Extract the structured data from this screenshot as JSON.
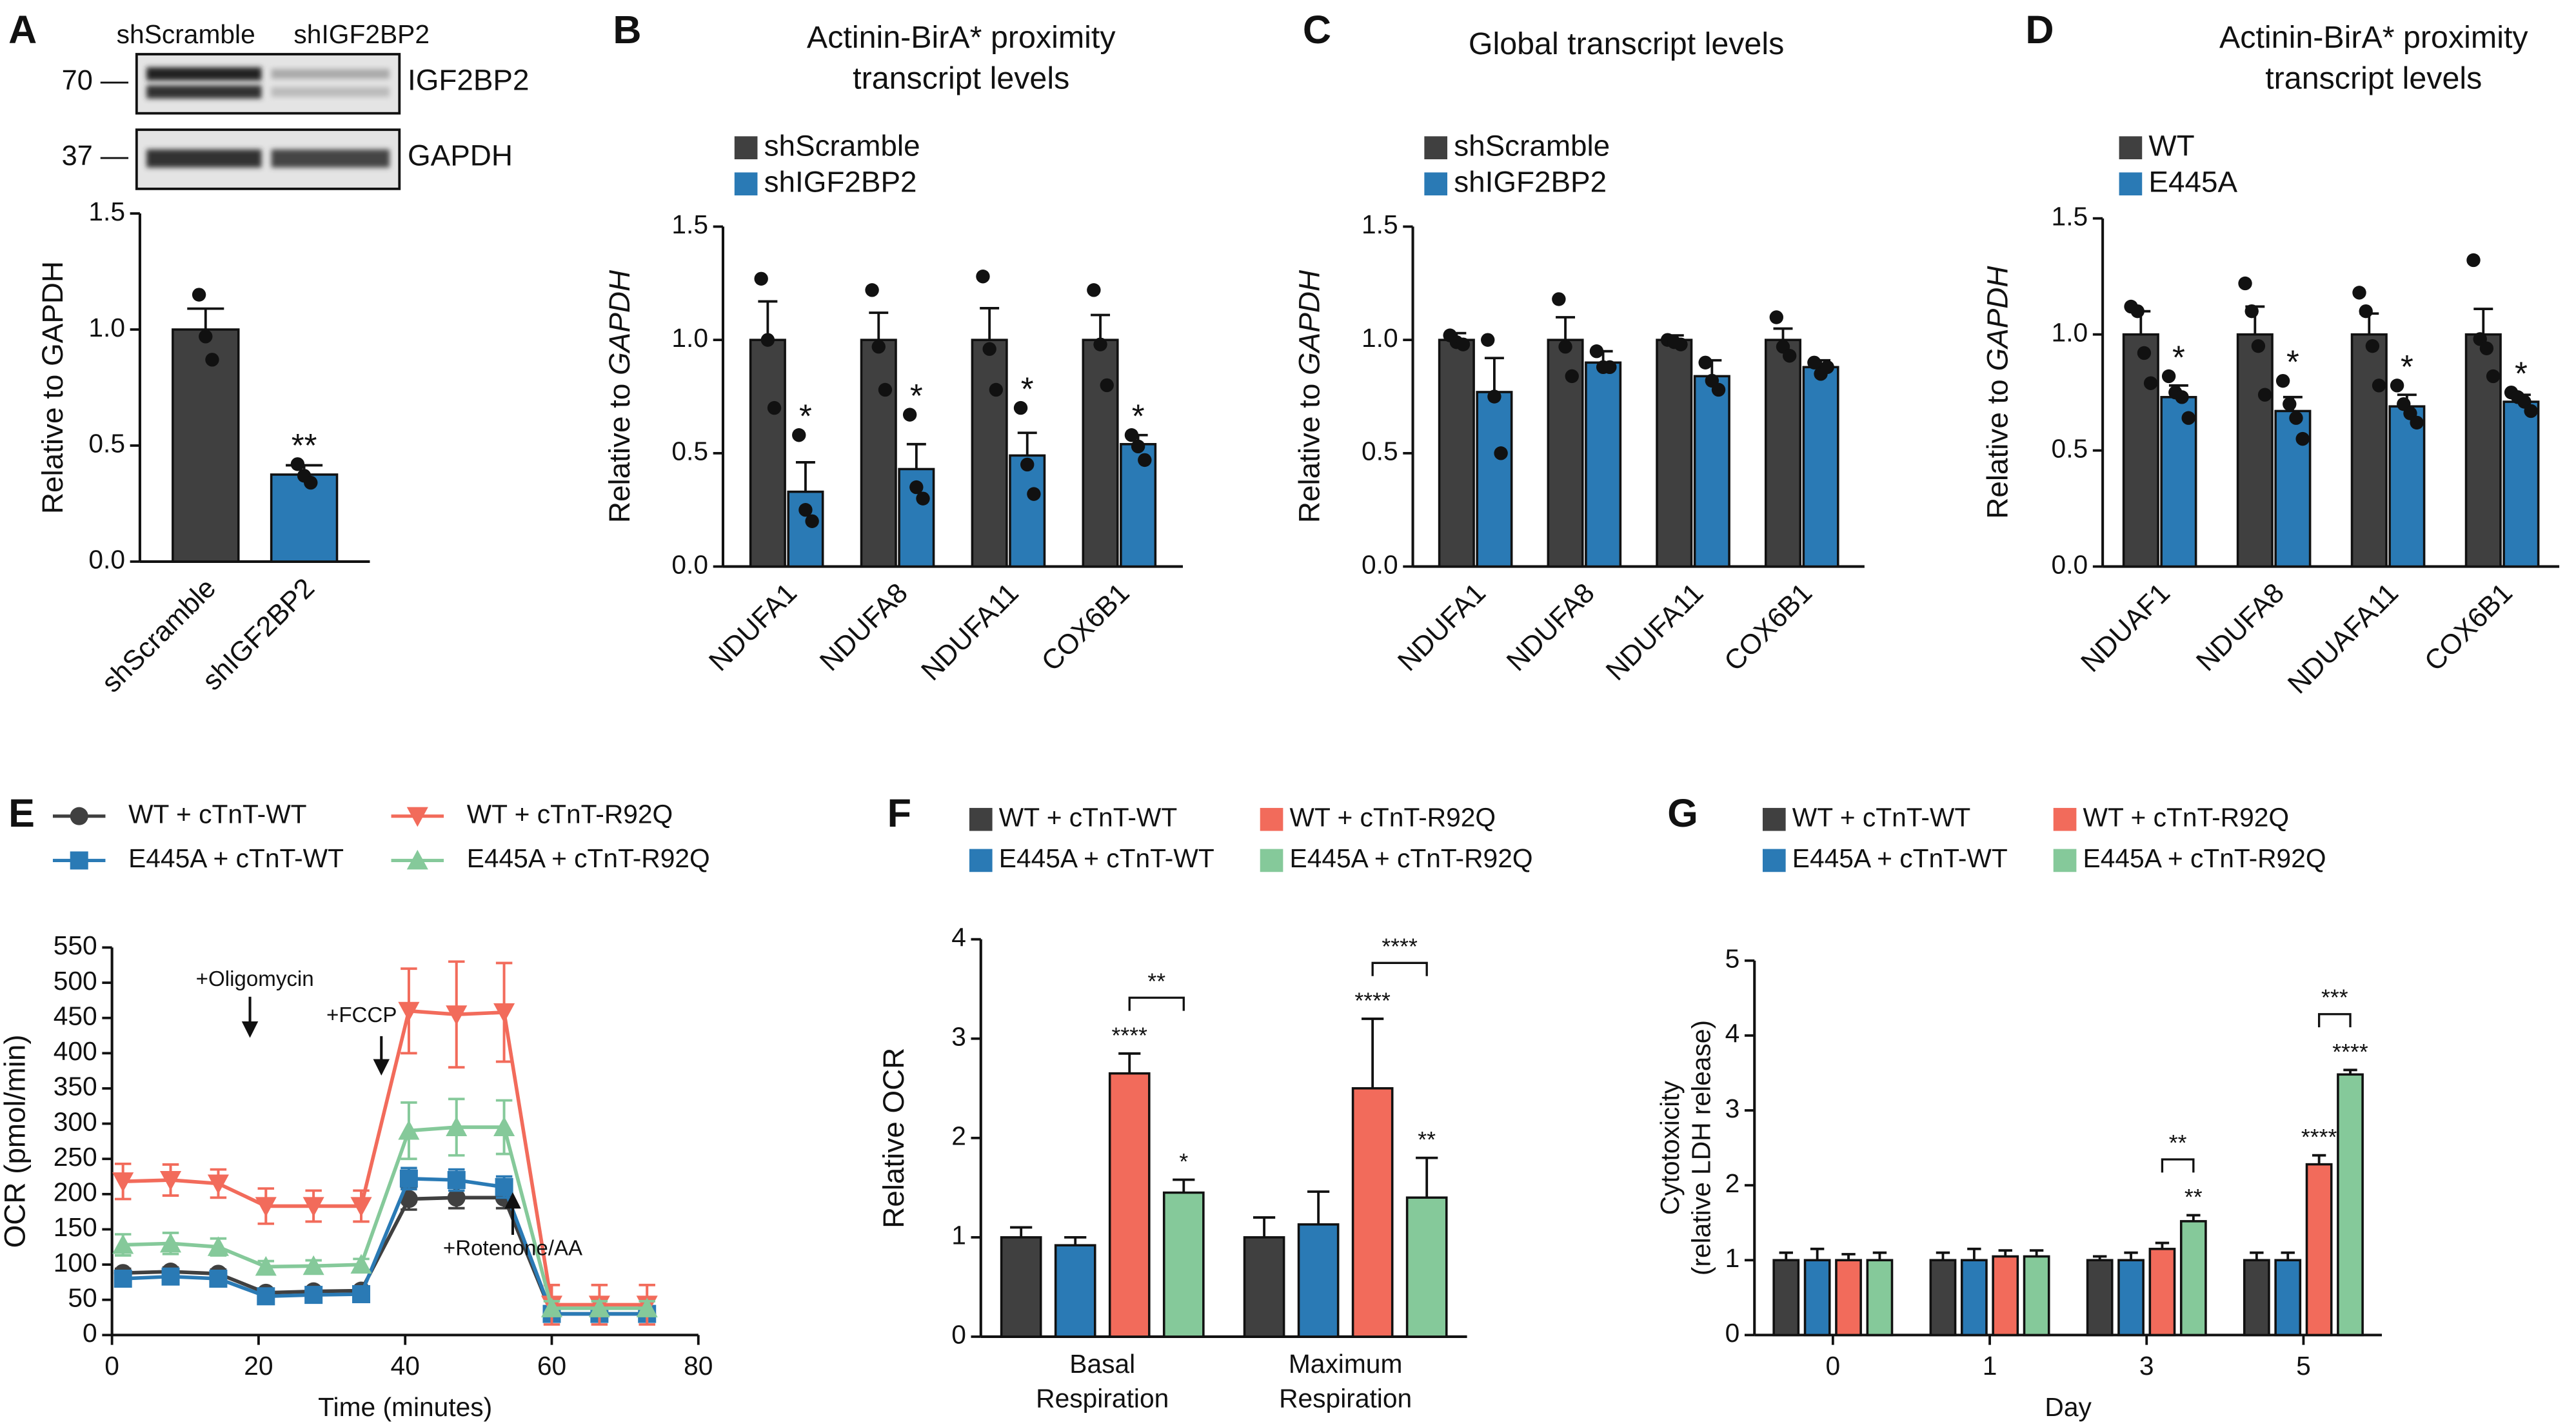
{
  "chart_data": [
    {
      "panel": "A",
      "type": "bar",
      "blot": {
        "lanes": [
          "shScramble",
          "shIGF2BP2"
        ],
        "rows": [
          {
            "marker": "70 —",
            "protein": "IGF2BP2"
          },
          {
            "marker": "37 —",
            "protein": "GAPDH"
          }
        ]
      },
      "categories": [
        "shScramble",
        "shIGF2BP2"
      ],
      "values": [
        1.0,
        0.375
      ],
      "errors": [
        0.09,
        0.04
      ],
      "points": [
        [
          1.15,
          0.97,
          0.87
        ],
        [
          0.42,
          0.37,
          0.34
        ]
      ],
      "colors": [
        "#404040",
        "#2a7ab5"
      ],
      "significance": [
        null,
        "**"
      ],
      "y_label": "Relative to GAPDH",
      "ylim": [
        0,
        1.5
      ],
      "yticks": [
        {
          "value": 0,
          "label": "0.0"
        },
        0.5,
        {
          "value": 1,
          "label": "1.0"
        },
        1.5
      ]
    },
    {
      "panel": "B",
      "type": "bar",
      "title": "Actinin-BirA* proximity transcript levels",
      "categories": [
        "NDUFA1",
        "NDUFA8",
        "NDUFA11",
        "COX6B1"
      ],
      "series": [
        {
          "name": "shScramble",
          "color": "#404040",
          "values": [
            1,
            1,
            1,
            1
          ],
          "errors": [
            0.17,
            0.12,
            0.14,
            0.11
          ],
          "points": [
            [
              1.27,
              1.0,
              0.7
            ],
            [
              1.22,
              0.97,
              0.78
            ],
            [
              1.28,
              0.96,
              0.78
            ],
            [
              1.22,
              0.98,
              0.8
            ]
          ],
          "significance": [
            null,
            null,
            null,
            null
          ]
        },
        {
          "name": "shIGF2BP2",
          "color": "#2a7ab5",
          "values": [
            0.33,
            0.43,
            0.49,
            0.54
          ],
          "errors": [
            0.13,
            0.11,
            0.1,
            0.04
          ],
          "points": [
            [
              0.58,
              0.25,
              0.2
            ],
            [
              0.67,
              0.35,
              0.3
            ],
            [
              0.7,
              0.45,
              0.32
            ],
            [
              0.58,
              0.53,
              0.47
            ]
          ],
          "significance": [
            "*",
            "*",
            "*",
            "*"
          ]
        }
      ],
      "y_label": "Relative to",
      "y_label_gene": "GAPDH",
      "ylim": [
        0,
        1.5
      ],
      "yticks": [
        {
          "value": 0,
          "label": "0.0"
        },
        0.5,
        {
          "value": 1,
          "label": "1.0"
        },
        1.5
      ]
    },
    {
      "panel": "C",
      "type": "bar",
      "title": "Global transcript levels",
      "categories": [
        "NDUFA1",
        "NDUFA8",
        "NDUFA11",
        "COX6B1"
      ],
      "series": [
        {
          "name": "shScramble",
          "color": "#404040",
          "values": [
            1,
            1,
            1,
            1
          ],
          "errors": [
            0.03,
            0.1,
            0.02,
            0.05
          ],
          "points": [
            [
              1.02,
              0.99,
              0.98
            ],
            [
              1.18,
              0.97,
              0.84
            ],
            [
              1.0,
              0.99,
              0.98
            ],
            [
              1.1,
              0.97,
              0.93
            ]
          ],
          "significance": [
            null,
            null,
            null,
            null
          ]
        },
        {
          "name": "shIGF2BP2",
          "color": "#2a7ab5",
          "values": [
            0.77,
            0.9,
            0.84,
            0.88
          ],
          "errors": [
            0.15,
            0.05,
            0.07,
            0.03
          ],
          "points": [
            [
              1.0,
              0.75,
              0.5
            ],
            [
              0.95,
              0.88,
              0.88
            ],
            [
              0.9,
              0.82,
              0.78
            ],
            [
              0.9,
              0.85,
              0.88
            ]
          ],
          "significance": [
            null,
            null,
            null,
            null
          ]
        }
      ],
      "y_label": "Relative to",
      "y_label_gene": "GAPDH",
      "ylim": [
        0,
        1.5
      ],
      "yticks": [
        {
          "value": 0,
          "label": "0.0"
        },
        0.5,
        {
          "value": 1,
          "label": "1.0"
        },
        1.5
      ]
    },
    {
      "panel": "D",
      "type": "bar",
      "title": "Actinin-BirA* proximity transcript levels",
      "categories": [
        "NDUAF1",
        "NDUFA8",
        "NDUAFA11",
        "COX6B1"
      ],
      "series": [
        {
          "name": "WT",
          "color": "#404040",
          "values": [
            1,
            1,
            1,
            1
          ],
          "errors": [
            0.1,
            0.12,
            0.09,
            0.11
          ],
          "points": [
            [
              1.12,
              1.1,
              0.92,
              0.79
            ],
            [
              1.22,
              1.1,
              0.95,
              0.74
            ],
            [
              1.18,
              1.1,
              0.95,
              0.78
            ],
            [
              1.32,
              0.98,
              0.94,
              0.82
            ]
          ],
          "significance": [
            null,
            null,
            null,
            null
          ]
        },
        {
          "name": "E445A",
          "color": "#2a7ab5",
          "values": [
            0.73,
            0.67,
            0.69,
            0.71
          ],
          "errors": [
            0.05,
            0.06,
            0.05,
            0.03
          ],
          "points": [
            [
              0.82,
              0.75,
              0.73,
              0.64
            ],
            [
              0.8,
              0.7,
              0.64,
              0.55
            ],
            [
              0.78,
              0.7,
              0.66,
              0.62
            ],
            [
              0.75,
              0.73,
              0.71,
              0.67
            ]
          ],
          "significance": [
            "*",
            "*",
            "*",
            "*"
          ]
        }
      ],
      "y_label": "Relative to",
      "y_label_gene": "GAPDH",
      "ylim": [
        0,
        1.5
      ],
      "yticks": [
        {
          "value": 0,
          "label": "0.0"
        },
        0.5,
        {
          "value": 1,
          "label": "1.0"
        },
        1.5
      ]
    },
    {
      "panel": "E",
      "type": "line",
      "x": [
        1.5,
        8,
        14.5,
        21,
        27.5,
        34,
        40.5,
        47,
        53.5,
        60,
        66.5,
        73
      ],
      "series": [
        {
          "name": "WT + cTnT-WT",
          "color": "#404040",
          "marker": "circle",
          "values": [
            88,
            90,
            87,
            60,
            62,
            63,
            193,
            195,
            195,
            30,
            30,
            30
          ],
          "errors": [
            6,
            6,
            6,
            5,
            5,
            5,
            15,
            15,
            15,
            5,
            5,
            5
          ]
        },
        {
          "name": "E445A + cTnT-WT",
          "color": "#2a7ab5",
          "marker": "square",
          "values": [
            80,
            83,
            80,
            55,
            57,
            58,
            222,
            220,
            210,
            30,
            30,
            30
          ],
          "errors": [
            6,
            6,
            6,
            5,
            5,
            5,
            15,
            15,
            15,
            5,
            5,
            5
          ]
        },
        {
          "name": "WT + cTnT-R92Q",
          "color": "#f26b5b",
          "marker": "triangle-down",
          "values": [
            218,
            220,
            215,
            183,
            183,
            183,
            460,
            455,
            458,
            43,
            43,
            43
          ],
          "errors": [
            25,
            22,
            20,
            25,
            22,
            22,
            60,
            75,
            70,
            28,
            28,
            28
          ]
        },
        {
          "name": "E445A + cTnT-R92Q",
          "color": "#85c99a",
          "marker": "triangle-up",
          "values": [
            128,
            130,
            125,
            97,
            98,
            100,
            290,
            295,
            295,
            38,
            38,
            38
          ],
          "errors": [
            15,
            15,
            12,
            8,
            8,
            8,
            40,
            40,
            38,
            10,
            10,
            10
          ]
        }
      ],
      "annotations": [
        "+Oligomycin",
        "+FCCP",
        "+Rotenone/AA"
      ],
      "x_label": "Time (minutes)",
      "y_label": "OCR (pmol/min)",
      "xlim": [
        0,
        80
      ],
      "xticks": [
        0,
        20,
        40,
        60,
        80
      ],
      "ylim": [
        0,
        550
      ],
      "yticks": [
        0,
        50,
        100,
        150,
        200,
        250,
        300,
        350,
        400,
        450,
        500,
        550
      ]
    },
    {
      "panel": "F",
      "type": "bar",
      "categories": [
        "Basal Respiration",
        "Maximum Respiration"
      ],
      "series": [
        {
          "name": "WT + cTnT-WT",
          "color": "#404040",
          "values": [
            1.0,
            1.0
          ],
          "errors": [
            0.1,
            0.2
          ],
          "significance": [
            null,
            null
          ]
        },
        {
          "name": "E445A + cTnT-WT",
          "color": "#2a7ab5",
          "values": [
            0.92,
            1.13
          ],
          "errors": [
            0.08,
            0.33
          ],
          "significance": [
            null,
            null
          ]
        },
        {
          "name": "WT + cTnT-R92Q",
          "color": "#f26b5b",
          "values": [
            2.65,
            2.5
          ],
          "errors": [
            0.2,
            0.7
          ],
          "significance": [
            "****",
            "****"
          ]
        },
        {
          "name": "E445A + cTnT-R92Q",
          "color": "#85c99a",
          "values": [
            1.45,
            1.4
          ],
          "errors": [
            0.13,
            0.4
          ],
          "significance": [
            "*",
            "**"
          ]
        }
      ],
      "bracket_labels": [
        "**",
        "****"
      ],
      "y_label": "Relative OCR",
      "ylim": [
        0,
        4
      ],
      "yticks": [
        0,
        1,
        2,
        3,
        4
      ]
    },
    {
      "panel": "G",
      "type": "bar",
      "categories": [
        "0",
        "1",
        "3",
        "5"
      ],
      "series": [
        {
          "name": "WT + cTnT-WT",
          "color": "#404040",
          "values": [
            1,
            1,
            1,
            1
          ],
          "errors": [
            0.1,
            0.1,
            0.05,
            0.1
          ],
          "significance": [
            null,
            null,
            null,
            null
          ]
        },
        {
          "name": "E445A + cTnT-WT",
          "color": "#2a7ab5",
          "values": [
            1,
            1,
            1,
            1
          ],
          "errors": [
            0.15,
            0.15,
            0.1,
            0.1
          ],
          "significance": [
            null,
            null,
            null,
            null
          ]
        },
        {
          "name": "WT + cTnT-R92Q",
          "color": "#f26b5b",
          "values": [
            1,
            1.05,
            1.15,
            2.28
          ],
          "errors": [
            0.08,
            0.08,
            0.08,
            0.12
          ],
          "significance": [
            null,
            null,
            null,
            "****"
          ]
        },
        {
          "name": "E445A + cTnT-R92Q",
          "color": "#85c99a",
          "values": [
            1,
            1.05,
            1.52,
            3.48
          ],
          "errors": [
            0.1,
            0.08,
            0.08,
            0.06
          ],
          "significance": [
            null,
            null,
            "**",
            "****"
          ]
        }
      ],
      "bracket_labels": [
        null,
        null,
        "**",
        "***"
      ],
      "x_label": "Day",
      "y_label": [
        "Cytotoxicity",
        "(relative LDH release)"
      ],
      "ylim": [
        0,
        5
      ],
      "yticks": [
        0,
        1,
        2,
        3,
        4,
        5
      ]
    }
  ]
}
